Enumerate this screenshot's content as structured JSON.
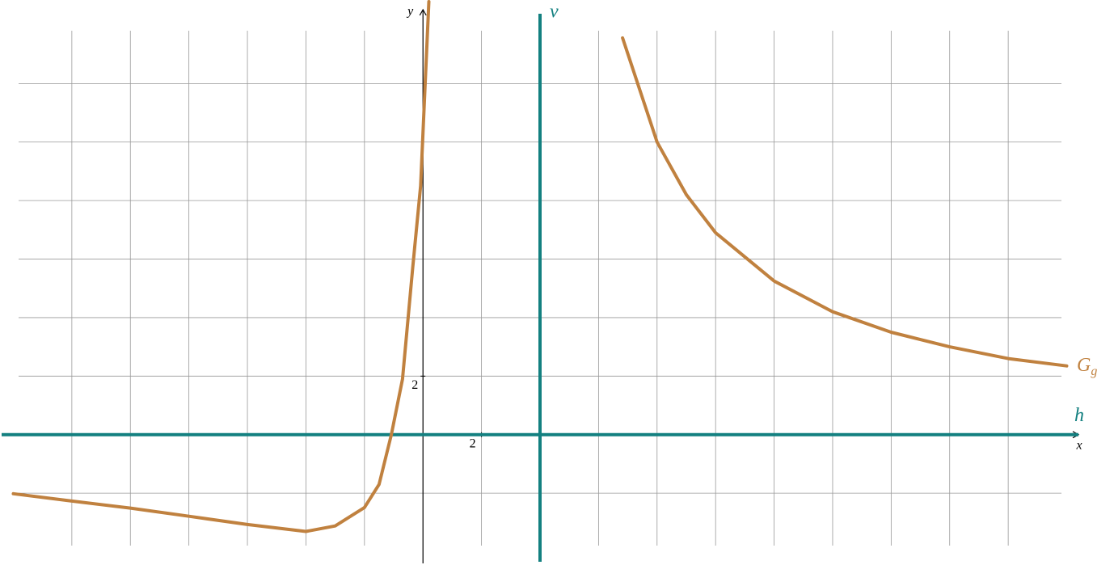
{
  "chart_data": {
    "type": "function-plot",
    "xlim": [
      -14.4,
      22.4
    ],
    "ylim": [
      -4.4,
      14.8
    ],
    "xticks": [
      2
    ],
    "yticks": [
      2
    ],
    "xgrid": [
      -12,
      -10,
      -8,
      -6,
      -4,
      -2,
      2,
      4,
      6,
      8,
      10,
      12,
      14,
      16,
      18,
      20
    ],
    "ygrid": [
      -2,
      2,
      4,
      6,
      8,
      10,
      12
    ],
    "grid": true,
    "x_label": "x",
    "y_label": "y",
    "asymptotes": [
      {
        "name": "v",
        "orientation": "vertical",
        "value": 4,
        "color": "#138080"
      },
      {
        "name": "h",
        "orientation": "horizontal",
        "value": 0,
        "color": "#138080"
      }
    ],
    "series": [
      {
        "name": "G",
        "subscript": "g",
        "color": "#c0813f",
        "x": [
          -14.0,
          -12.0,
          -10.0,
          -8.0,
          -6.0,
          -4.0,
          -3.0,
          -2.0,
          -1.5,
          -1.08,
          -0.7,
          -0.35,
          -0.08,
          0.08,
          0.2,
          null,
          6.82,
          8.0,
          9.0,
          10.0,
          12.0,
          14.0,
          16.0,
          18.0,
          20.0,
          22.0
        ],
        "values": [
          -2.02,
          -2.27,
          -2.51,
          -2.79,
          -3.07,
          -3.31,
          -3.12,
          -2.49,
          -1.7,
          0,
          1.9,
          5.7,
          8.5,
          12.1,
          14.8,
          null,
          13.56,
          10.0,
          8.2,
          6.9,
          5.25,
          4.2,
          3.5,
          3.0,
          2.6,
          2.35
        ]
      }
    ]
  }
}
